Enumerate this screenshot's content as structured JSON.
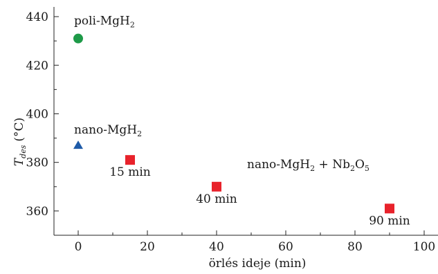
{
  "chart_data": {
    "type": "scatter",
    "title": "",
    "xlabel": "örlés ideje (min)",
    "ylabel_main": "T",
    "ylabel_subscript": "des",
    "ylabel_unit": "(°C)",
    "xlim": [
      -7,
      104
    ],
    "ylim": [
      350,
      444
    ],
    "x_ticks": [
      0,
      20,
      40,
      60,
      80,
      100
    ],
    "y_ticks": [
      360,
      380,
      400,
      420,
      440
    ],
    "grid": false,
    "legend": "none",
    "series": [
      {
        "label_parts": [
          "poli-MgH",
          "2"
        ],
        "marker": "circle",
        "color": "#1e9a48",
        "points": [
          {
            "x": 0,
            "y": 431
          }
        ]
      },
      {
        "label_parts": [
          "nano-MgH",
          "2"
        ],
        "marker": "triangle",
        "color": "#1f5ba8",
        "points": [
          {
            "x": 0,
            "y": 387
          }
        ]
      },
      {
        "label_parts": [
          "nano-MgH",
          "2",
          " + Nb",
          "2",
          "O",
          "5"
        ],
        "marker": "square",
        "color": "#e8222b",
        "points": [
          {
            "x": 15,
            "y": 381,
            "label": "15 min"
          },
          {
            "x": 40,
            "y": 370,
            "label": "40 min"
          },
          {
            "x": 90,
            "y": 361,
            "label": "90 min"
          }
        ]
      }
    ]
  }
}
